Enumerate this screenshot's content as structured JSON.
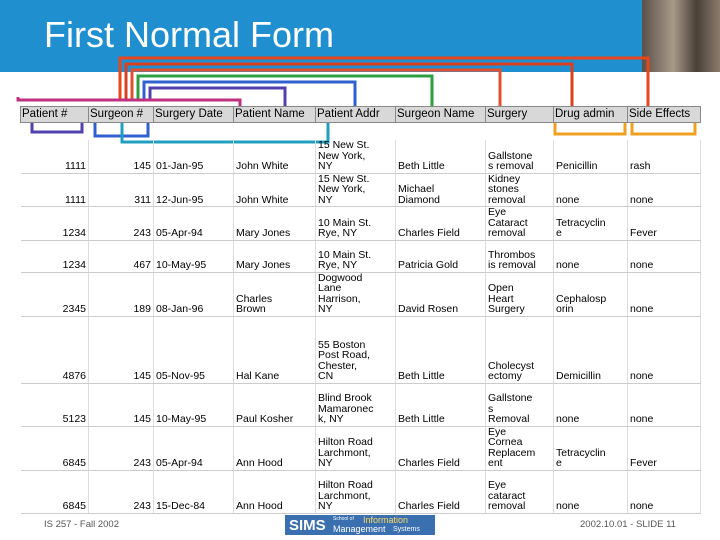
{
  "header": {
    "title": "First Normal Form"
  },
  "table": {
    "headers": [
      "Patient #",
      "Surgeon #",
      "Surgery Date",
      "Patient Name",
      "Patient Addr",
      "Surgeon Name",
      "Surgery",
      "Drug admin",
      "Side Effects"
    ],
    "rows": [
      [
        "1111",
        "145",
        "01-Jan-95",
        "John White",
        "15 New St.\nNew York,\nNY",
        "Beth Little",
        "Gallstone\ns removal",
        "Penicillin",
        "rash"
      ],
      [
        "1111",
        "311",
        "12-Jun-95",
        "John White",
        "15 New St.\nNew York,\nNY",
        "Michael\nDiamond",
        "Kidney\nstones\nremoval",
        "none",
        "none"
      ],
      [
        "1234",
        "243",
        "05-Apr-94",
        "Mary Jones",
        "10 Main St.\nRye, NY",
        "Charles Field",
        "Eye\nCataract\nremoval",
        "Tetracyclin\ne",
        "Fever"
      ],
      [
        "1234",
        "467",
        "10-May-95",
        "Mary Jones",
        "10 Main St.\nRye, NY",
        "Patricia Gold",
        "Thrombos\nis removal",
        "none",
        "none"
      ],
      [
        "2345",
        "189",
        "08-Jan-96",
        "Charles\nBrown",
        "Dogwood\nLane\nHarrison,\nNY",
        "David Rosen",
        "Open\nHeart\nSurgery",
        "Cephalosp\norin",
        "none"
      ],
      [
        "4876",
        "145",
        "05-Nov-95",
        "Hal Kane",
        "55 Boston\nPost Road,\nChester,\nCN",
        "Beth Little",
        "Cholecyst\nectomy",
        "Demicillin",
        "none"
      ],
      [
        "5123",
        "145",
        "10-May-95",
        "Paul Kosher",
        "Blind Brook\nMamaronec\nk, NY",
        "Beth Little",
        "Gallstone\ns\nRemoval",
        "none",
        "none"
      ],
      [
        "6845",
        "243",
        "05-Apr-94",
        "Ann Hood",
        "Hilton Road\nLarchmont,\nNY",
        "Charles Field",
        "Eye\nCornea\nReplacem\nent",
        "Tetracyclin\ne",
        "Fever"
      ],
      [
        "6845",
        "243",
        "15-Dec-84",
        "Ann Hood",
        "Hilton Road\nLarchmont,\nNY",
        "Charles Field",
        "Eye\ncataract\nremoval",
        "none",
        "none"
      ]
    ]
  },
  "footer": {
    "left": "IS 257 - Fall 2002",
    "right": "2002.10.01 - SLIDE 11",
    "logo": {
      "name": "SIMS",
      "school_of": "School of",
      "information": "Information",
      "management": "Management",
      "systems": "Systems"
    }
  }
}
